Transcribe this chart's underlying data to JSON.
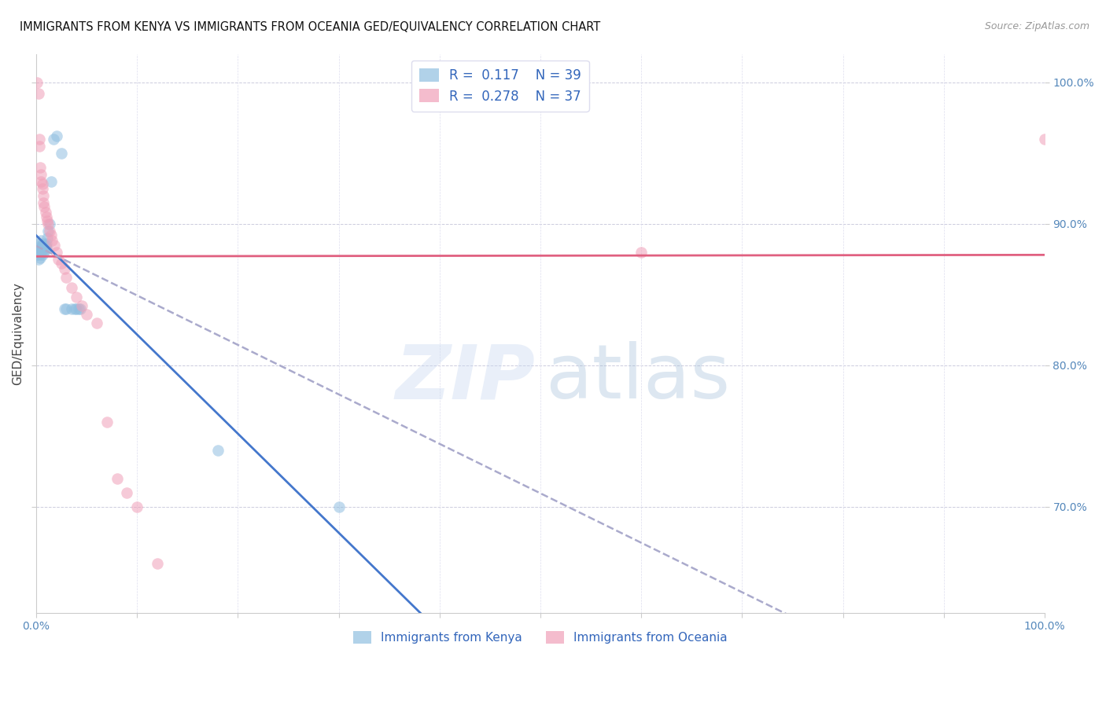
{
  "title": "IMMIGRANTS FROM KENYA VS IMMIGRANTS FROM OCEANIA GED/EQUIVALENCY CORRELATION CHART",
  "source": "Source: ZipAtlas.com",
  "ylabel": "GED/Equivalency",
  "legend_kenya_R": 0.117,
  "legend_kenya_N": 39,
  "legend_oceania_R": 0.278,
  "legend_oceania_N": 37,
  "kenya_color": "#90bfe0",
  "oceania_color": "#f0a0b8",
  "kenya_line_color": "#4477cc",
  "oceania_line_color": "#e06080",
  "dashed_line_color": "#aaaacc",
  "background": "#ffffff",
  "kenya_x": [
    0.001,
    0.002,
    0.002,
    0.003,
    0.003,
    0.003,
    0.004,
    0.004,
    0.004,
    0.005,
    0.005,
    0.005,
    0.006,
    0.006,
    0.006,
    0.007,
    0.007,
    0.008,
    0.008,
    0.009,
    0.009,
    0.01,
    0.01,
    0.011,
    0.012,
    0.013,
    0.015,
    0.017,
    0.02,
    0.025,
    0.028,
    0.03,
    0.035,
    0.038,
    0.04,
    0.042,
    0.044,
    0.18,
    0.3
  ],
  "kenya_y": [
    0.878,
    0.88,
    0.875,
    0.886,
    0.882,
    0.878,
    0.884,
    0.88,
    0.876,
    0.888,
    0.883,
    0.879,
    0.885,
    0.882,
    0.878,
    0.886,
    0.883,
    0.884,
    0.88,
    0.885,
    0.882,
    0.886,
    0.883,
    0.89,
    0.895,
    0.9,
    0.93,
    0.96,
    0.962,
    0.95,
    0.84,
    0.84,
    0.84,
    0.84,
    0.84,
    0.84,
    0.84,
    0.74,
    0.7
  ],
  "oceania_x": [
    0.001,
    0.002,
    0.003,
    0.003,
    0.004,
    0.005,
    0.005,
    0.006,
    0.006,
    0.007,
    0.007,
    0.008,
    0.009,
    0.01,
    0.011,
    0.012,
    0.013,
    0.015,
    0.016,
    0.018,
    0.02,
    0.022,
    0.025,
    0.028,
    0.03,
    0.035,
    0.04,
    0.045,
    0.05,
    0.06,
    0.07,
    0.08,
    0.09,
    0.1,
    0.12,
    0.6,
    1.0
  ],
  "oceania_y": [
    1.0,
    0.992,
    0.96,
    0.955,
    0.94,
    0.935,
    0.93,
    0.928,
    0.925,
    0.92,
    0.915,
    0.912,
    0.908,
    0.905,
    0.902,
    0.9,
    0.895,
    0.892,
    0.888,
    0.885,
    0.88,
    0.875,
    0.872,
    0.868,
    0.862,
    0.855,
    0.848,
    0.842,
    0.836,
    0.83,
    0.76,
    0.72,
    0.71,
    0.7,
    0.66,
    0.88,
    0.96
  ],
  "xlim": [
    0.0,
    1.0
  ],
  "ylim": [
    0.625,
    1.02
  ],
  "yticks": [
    0.7,
    0.8,
    0.9,
    1.0
  ],
  "yticklabels": [
    "70.0%",
    "80.0%",
    "90.0%",
    "100.0%"
  ],
  "tick_color": "#5588bb",
  "legend_text_color": "#3366bb",
  "marker_size": 110,
  "marker_alpha": 0.55,
  "title_fontsize": 10.5,
  "source_fontsize": 9,
  "axis_label_fontsize": 10,
  "legend_fontsize": 12
}
